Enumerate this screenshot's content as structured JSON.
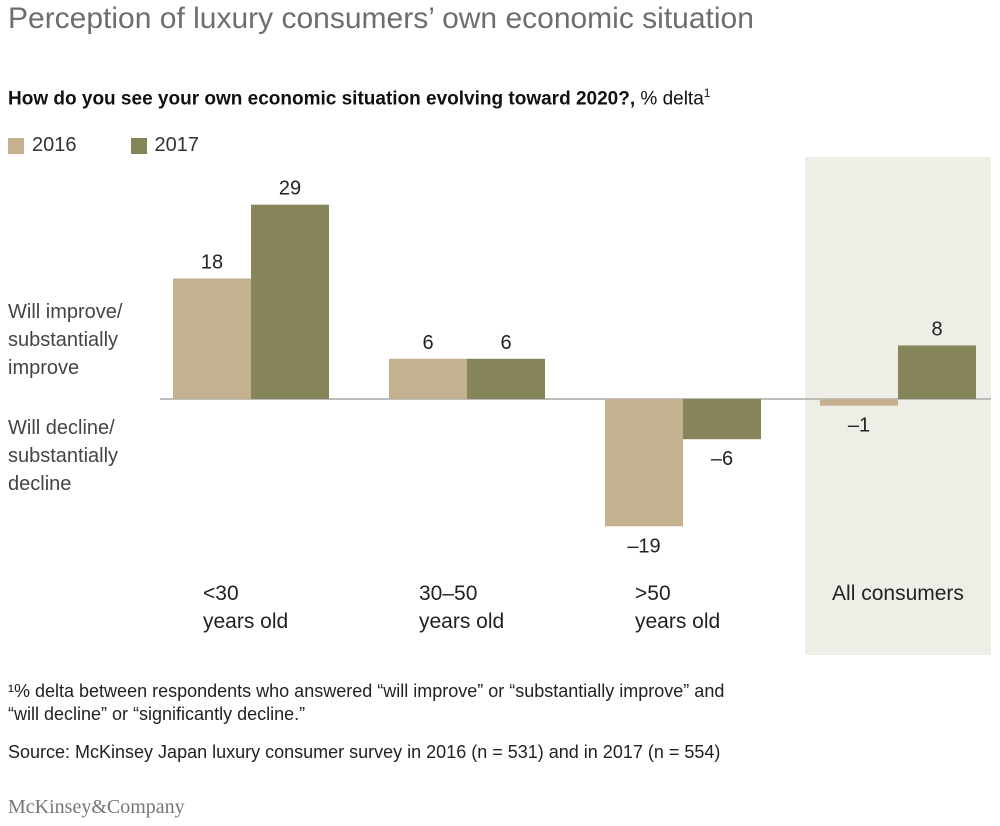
{
  "title": "Perception of luxury consumers’ own economic situation",
  "subtitle": {
    "bold": "How do you see your own economic situation evolving toward 2020?,",
    "normal": " % delta",
    "footnote_mark": "1"
  },
  "side_labels": {
    "positive": "Will improve/\nsubstantially\nimprove",
    "negative": "Will decline/\nsubstantially\ndecline"
  },
  "footnote": "¹% delta between respondents who answered “will improve” or “substantially improve” and\n“will decline” or “significantly decline.”",
  "source": "Source: McKinsey Japan luxury consumer survey in 2016 (n = 531) and in 2017 (n = 554)",
  "logo": "McKinsey&Company",
  "colors": {
    "series_2016": "#c3b18f",
    "series_2017": "#858559",
    "highlight_bg": "#eeeee6",
    "baseline": "#bdbdbd"
  },
  "chart_data": {
    "type": "bar",
    "categories": [
      "<30\nyears old",
      "30–50\nyears old",
      ">50\nyears old",
      "All consumers"
    ],
    "series": [
      {
        "name": "2016",
        "values": [
          18,
          6,
          -19,
          -1
        ],
        "labels": [
          "18",
          "6",
          "–19",
          "–1"
        ]
      },
      {
        "name": "2017",
        "values": [
          29,
          6,
          -6,
          8
        ],
        "labels": [
          "29",
          "6",
          "–6",
          "8"
        ]
      }
    ],
    "highlighted_category": "All consumers",
    "legend_position": "top-left",
    "grid": false
  }
}
